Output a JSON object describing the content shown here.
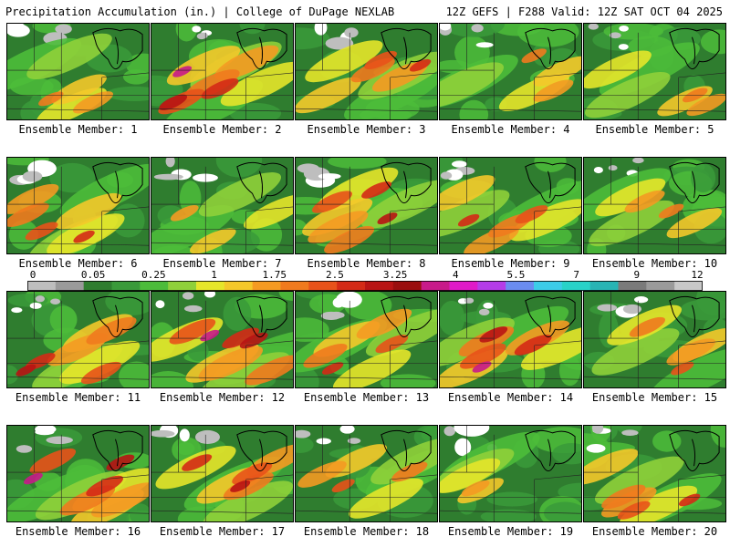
{
  "header": {
    "title_left": "Precipitation Accumulation (in.) | College of DuPage NEXLAB",
    "title_right": "12Z GEFS | F288 Valid: 12Z SAT OCT 04 2025"
  },
  "members": [
    {
      "label": "Ensemble Member: 1",
      "intensity": 0.35,
      "snow": 0.25
    },
    {
      "label": "Ensemble Member: 2",
      "intensity": 0.75,
      "snow": 0.05
    },
    {
      "label": "Ensemble Member: 3",
      "intensity": 0.55,
      "snow": 0.45
    },
    {
      "label": "Ensemble Member: 4",
      "intensity": 0.3,
      "snow": 0.2
    },
    {
      "label": "Ensemble Member: 5",
      "intensity": 0.35,
      "snow": 0.05
    },
    {
      "label": "Ensemble Member: 6",
      "intensity": 0.55,
      "snow": 0.4
    },
    {
      "label": "Ensemble Member: 7",
      "intensity": 0.2,
      "snow": 0.5
    },
    {
      "label": "Ensemble Member: 8",
      "intensity": 0.65,
      "snow": 0.35
    },
    {
      "label": "Ensemble Member: 9",
      "intensity": 0.6,
      "snow": 0.2
    },
    {
      "label": "Ensemble Member: 10",
      "intensity": 0.3,
      "snow": 0.05
    },
    {
      "label": "Ensemble Member: 11",
      "intensity": 0.7,
      "snow": 0.05
    },
    {
      "label": "Ensemble Member: 12",
      "intensity": 0.75,
      "snow": 0.15
    },
    {
      "label": "Ensemble Member: 13",
      "intensity": 0.55,
      "snow": 0.35
    },
    {
      "label": "Ensemble Member: 14",
      "intensity": 0.75,
      "snow": 0.05
    },
    {
      "label": "Ensemble Member: 15",
      "intensity": 0.4,
      "snow": 0.25
    },
    {
      "label": "Ensemble Member: 16",
      "intensity": 0.75,
      "snow": 0.4
    },
    {
      "label": "Ensemble Member: 17",
      "intensity": 0.65,
      "snow": 0.3
    },
    {
      "label": "Ensemble Member: 18",
      "intensity": 0.45,
      "snow": 0.15
    },
    {
      "label": "Ensemble Member: 19",
      "intensity": 0.25,
      "snow": 0.6
    },
    {
      "label": "Ensemble Member: 20",
      "intensity": 0.6,
      "snow": 0.2
    }
  ],
  "colorbar": {
    "labels": [
      "0",
      "0.05",
      "0.25",
      "1",
      "1.75",
      "2.5",
      "3.25",
      "4",
      "5.5",
      "7",
      "9",
      "12"
    ],
    "colors": [
      "#bebebe",
      "#9a9a9a",
      "#2f7d2f",
      "#3a9a3a",
      "#4cbc3a",
      "#8fd03a",
      "#e6e62a",
      "#f4c82a",
      "#f49a22",
      "#f07a1e",
      "#e8521a",
      "#d42a16",
      "#b81414",
      "#9a0e0e",
      "#c81a8a",
      "#e01ac8",
      "#b43ce8",
      "#6a8cf0",
      "#3ccce8",
      "#28d2c8",
      "#28b4b4",
      "#7a7a7a",
      "#9a9a9a",
      "#c8c8c8"
    ]
  }
}
